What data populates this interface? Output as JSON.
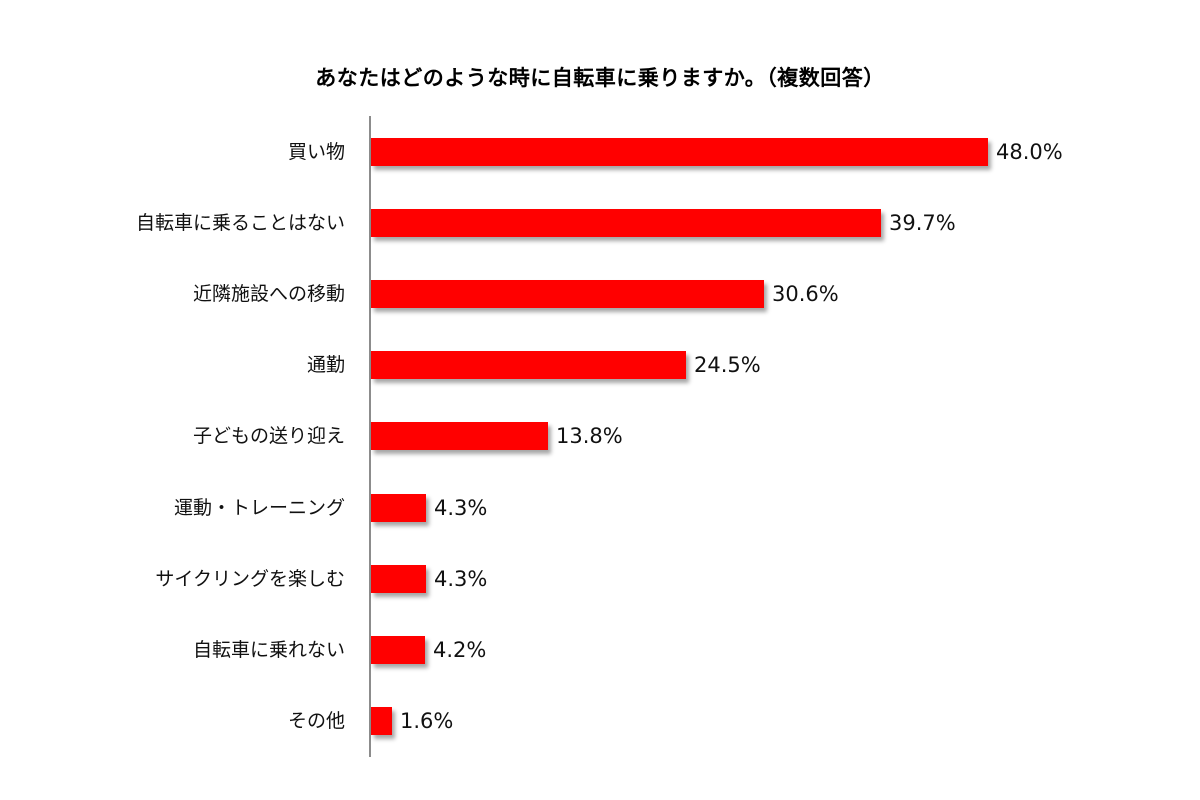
{
  "title": "あなたはどのような時に自転車に乗りますか。（複数回答）",
  "colors": {
    "bar": "#ff0000",
    "axis": "#8c8c8c",
    "text": "#111111"
  },
  "rows": [
    {
      "label": "買い物",
      "value": 48.0,
      "value_label": "48.0%"
    },
    {
      "label": "自転車に乗ることはない",
      "value": 39.7,
      "value_label": "39.7%"
    },
    {
      "label": "近隣施設への移動",
      "value": 30.6,
      "value_label": "30.6%"
    },
    {
      "label": "通勤",
      "value": 24.5,
      "value_label": "24.5%"
    },
    {
      "label": "子どもの送り迎え",
      "value": 13.8,
      "value_label": "13.8%"
    },
    {
      "label": "運動・トレーニング",
      "value": 4.3,
      "value_label": "4.3%"
    },
    {
      "label": "サイクリングを楽しむ",
      "value": 4.3,
      "value_label": "4.3%"
    },
    {
      "label": "自転車に乗れない",
      "value": 4.2,
      "value_label": "4.2%"
    },
    {
      "label": "その他",
      "value": 1.6,
      "value_label": "1.6%"
    }
  ],
  "chart_data": {
    "type": "bar",
    "orientation": "horizontal",
    "title": "あなたはどのような時に自転車に乗りますか。（複数回答）",
    "categories": [
      "買い物",
      "自転車に乗ることはない",
      "近隣施設への移動",
      "通勤",
      "子どもの送り迎え",
      "運動・トレーニング",
      "サイクリングを楽しむ",
      "自転車に乗れない",
      "その他"
    ],
    "values": [
      48.0,
      39.7,
      30.6,
      24.5,
      13.8,
      4.3,
      4.3,
      4.2,
      1.6
    ],
    "unit": "%",
    "xlabel": "",
    "ylabel": "",
    "xlim": [
      0,
      50
    ],
    "grid": false,
    "legend": null,
    "data_labels": true
  }
}
